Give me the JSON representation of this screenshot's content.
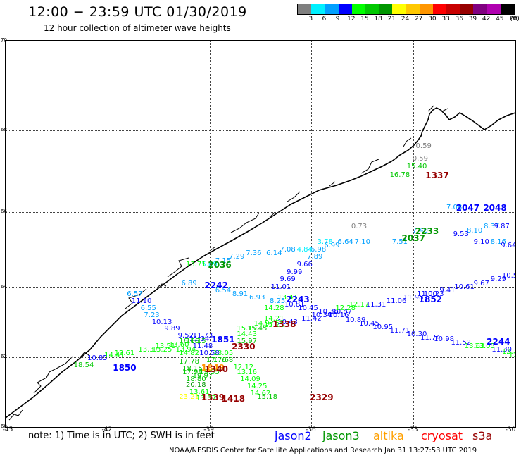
{
  "header": {
    "title": "12:00 − 23:59 UTC 01/30/2019",
    "subtitle": "12 hour collection of altimeter wave heights"
  },
  "colorbar": {
    "unit_label": "(ft)",
    "levels": [
      "3",
      "6",
      "9",
      "12",
      "15",
      "18",
      "21",
      "24",
      "27",
      "30",
      "33",
      "36",
      "39",
      "42",
      "45",
      "70"
    ],
    "colors": [
      "#7f7f7f",
      "#00f0ff",
      "#00a0ff",
      "#0000ff",
      "#00ff00",
      "#00c800",
      "#009600",
      "#ffff00",
      "#ffc800",
      "#ff9600",
      "#ff0000",
      "#c80000",
      "#960000",
      "#800080",
      "#b000b0",
      "#000000"
    ]
  },
  "map": {
    "lat_labels": [
      "70",
      "68",
      "66",
      "64",
      "62",
      "60"
    ],
    "lon_labels": [
      "-45",
      "-42",
      "-39",
      "-36",
      "-33",
      "-30"
    ],
    "observations": [
      {
        "t": "0.59",
        "c": "#808080",
        "lon": -32.7,
        "lat": 67.6
      },
      {
        "t": "0.59",
        "c": "#808080",
        "lon": -32.8,
        "lat": 67.3
      },
      {
        "t": "15.40",
        "c": "#00c800",
        "lon": -32.9,
        "lat": 67.1
      },
      {
        "t": "16.78",
        "c": "#00c800",
        "lon": -33.4,
        "lat": 66.9
      },
      {
        "t": "0.73",
        "c": "#808080",
        "lon": -34.6,
        "lat": 65.6
      },
      {
        "t": "7.08",
        "c": "#00a0ff",
        "lon": -31.8,
        "lat": 66.1
      },
      {
        "t": "7.40",
        "c": "#00a0ff",
        "lon": -32.8,
        "lat": 65.5
      },
      {
        "t": "8.10",
        "c": "#00a0ff",
        "lon": -31.2,
        "lat": 65.5
      },
      {
        "t": "8.37",
        "c": "#00a0ff",
        "lon": -30.7,
        "lat": 65.6
      },
      {
        "t": "9.87",
        "c": "#0000ff",
        "lon": -30.4,
        "lat": 65.6
      },
      {
        "t": "9.53",
        "c": "#0000ff",
        "lon": -31.6,
        "lat": 65.4
      },
      {
        "t": "9.10",
        "c": "#0000ff",
        "lon": -31.0,
        "lat": 65.2
      },
      {
        "t": "8.16",
        "c": "#00a0ff",
        "lon": -30.5,
        "lat": 65.2
      },
      {
        "t": "9.64",
        "c": "#0000ff",
        "lon": -30.2,
        "lat": 65.1
      },
      {
        "t": "7.51",
        "c": "#00a0ff",
        "lon": -33.4,
        "lat": 65.2
      },
      {
        "t": "7.10",
        "c": "#00a0ff",
        "lon": -34.5,
        "lat": 65.2
      },
      {
        "t": "6.64",
        "c": "#00a0ff",
        "lon": -35.0,
        "lat": 65.2
      },
      {
        "t": "3.78",
        "c": "#00f0ff",
        "lon": -35.6,
        "lat": 65.2
      },
      {
        "t": "6.99",
        "c": "#00a0ff",
        "lon": -35.4,
        "lat": 65.1
      },
      {
        "t": "6.98",
        "c": "#00a0ff",
        "lon": -35.8,
        "lat": 65.0
      },
      {
        "t": "4.84",
        "c": "#00f0ff",
        "lon": -36.2,
        "lat": 65.0
      },
      {
        "t": "7.08",
        "c": "#00a0ff",
        "lon": -36.7,
        "lat": 65.0
      },
      {
        "t": "7.89",
        "c": "#00a0ff",
        "lon": -35.9,
        "lat": 64.8
      },
      {
        "t": "6.14",
        "c": "#00a0ff",
        "lon": -37.1,
        "lat": 64.9
      },
      {
        "t": "7.36",
        "c": "#00a0ff",
        "lon": -37.7,
        "lat": 64.9
      },
      {
        "t": "7.29",
        "c": "#00a0ff",
        "lon": -38.2,
        "lat": 64.8
      },
      {
        "t": "7.15",
        "c": "#00a0ff",
        "lon": -38.6,
        "lat": 64.7
      },
      {
        "t": "5.89",
        "c": "#00f0ff",
        "lon": -39.0,
        "lat": 64.6
      },
      {
        "t": "13.71",
        "c": "#00ff00",
        "lon": -39.4,
        "lat": 64.6
      },
      {
        "t": "9.66",
        "c": "#0000ff",
        "lon": -36.2,
        "lat": 64.6
      },
      {
        "t": "9.99",
        "c": "#0000ff",
        "lon": -36.5,
        "lat": 64.4
      },
      {
        "t": "9.69",
        "c": "#0000ff",
        "lon": -36.7,
        "lat": 64.2
      },
      {
        "t": "11.01",
        "c": "#0000ff",
        "lon": -36.9,
        "lat": 64.0
      },
      {
        "t": "6.89",
        "c": "#00a0ff",
        "lon": -39.6,
        "lat": 64.1
      },
      {
        "t": "6.54",
        "c": "#00a0ff",
        "lon": -38.6,
        "lat": 63.9
      },
      {
        "t": "8.91",
        "c": "#00a0ff",
        "lon": -38.1,
        "lat": 63.8
      },
      {
        "t": "6.93",
        "c": "#00a0ff",
        "lon": -37.6,
        "lat": 63.7
      },
      {
        "t": "8.25",
        "c": "#00a0ff",
        "lon": -37.0,
        "lat": 63.6
      },
      {
        "t": "13.41",
        "c": "#00ff00",
        "lon": -36.7,
        "lat": 63.7
      },
      {
        "t": "10.81",
        "c": "#0000ff",
        "lon": -36.5,
        "lat": 63.5
      },
      {
        "t": "6.57",
        "c": "#00a0ff",
        "lon": -41.2,
        "lat": 63.8
      },
      {
        "t": "11.10",
        "c": "#0000ff",
        "lon": -41.0,
        "lat": 63.6
      },
      {
        "t": "6.55",
        "c": "#00a0ff",
        "lon": -40.8,
        "lat": 63.4
      },
      {
        "t": "7.23",
        "c": "#00a0ff",
        "lon": -40.7,
        "lat": 63.2
      },
      {
        "t": "10.13",
        "c": "#0000ff",
        "lon": -40.4,
        "lat": 63.0
      },
      {
        "t": "9.89",
        "c": "#0000ff",
        "lon": -40.1,
        "lat": 62.8
      },
      {
        "t": "9.52",
        "c": "#0000ff",
        "lon": -39.7,
        "lat": 62.6
      },
      {
        "t": "11.73",
        "c": "#0000ff",
        "lon": -39.2,
        "lat": 62.6
      },
      {
        "t": "11.34",
        "c": "#0000ff",
        "lon": -39.3,
        "lat": 62.5
      },
      {
        "t": "11.48",
        "c": "#0000ff",
        "lon": -39.2,
        "lat": 62.3
      },
      {
        "t": "10.58",
        "c": "#0000ff",
        "lon": -39.0,
        "lat": 62.1
      },
      {
        "t": "14.28",
        "c": "#00ff00",
        "lon": -37.1,
        "lat": 63.4
      },
      {
        "t": "14.21",
        "c": "#00ff00",
        "lon": -37.1,
        "lat": 63.1
      },
      {
        "t": "14.97",
        "c": "#00ff00",
        "lon": -37.4,
        "lat": 62.95
      },
      {
        "t": "15.21",
        "c": "#00ff00",
        "lon": -37.1,
        "lat": 62.9
      },
      {
        "t": "15.45",
        "c": "#00c800",
        "lon": -37.6,
        "lat": 62.8
      },
      {
        "t": "15.19",
        "c": "#00ff00",
        "lon": -37.9,
        "lat": 62.8
      },
      {
        "t": "14.43",
        "c": "#00ff00",
        "lon": -37.9,
        "lat": 62.65
      },
      {
        "t": "15.97",
        "c": "#00c800",
        "lon": -37.9,
        "lat": 62.45
      },
      {
        "t": "10.45",
        "c": "#0000ff",
        "lon": -36.1,
        "lat": 63.4
      },
      {
        "t": "10.38",
        "c": "#0000ff",
        "lon": -35.5,
        "lat": 63.3
      },
      {
        "t": "10.87",
        "c": "#0000ff",
        "lon": -35.1,
        "lat": 63.3
      },
      {
        "t": "10.34",
        "c": "#0000ff",
        "lon": -35.7,
        "lat": 63.2
      },
      {
        "t": "10.16",
        "c": "#0000ff",
        "lon": -35.2,
        "lat": 63.2
      },
      {
        "t": "11.42",
        "c": "#0000ff",
        "lon": -36.0,
        "lat": 63.1
      },
      {
        "t": "10.43",
        "c": "#0000ff",
        "lon": -36.7,
        "lat": 63.0
      },
      {
        "t": "12.28",
        "c": "#00ff00",
        "lon": -35.0,
        "lat": 63.4
      },
      {
        "t": "12.17",
        "c": "#00ff00",
        "lon": -34.6,
        "lat": 63.5
      },
      {
        "t": "11.31",
        "c": "#0000ff",
        "lon": -34.1,
        "lat": 63.5
      },
      {
        "t": "11.06",
        "c": "#0000ff",
        "lon": -33.5,
        "lat": 63.6
      },
      {
        "t": "11.98",
        "c": "#0000ff",
        "lon": -33.0,
        "lat": 63.7
      },
      {
        "t": "11.00",
        "c": "#0000ff",
        "lon": -32.6,
        "lat": 63.8
      },
      {
        "t": "10.23",
        "c": "#0000ff",
        "lon": -32.4,
        "lat": 63.8
      },
      {
        "t": "9.41",
        "c": "#0000ff",
        "lon": -32.0,
        "lat": 63.9
      },
      {
        "t": "10.61",
        "c": "#0000ff",
        "lon": -31.5,
        "lat": 64.0
      },
      {
        "t": "9.67",
        "c": "#0000ff",
        "lon": -31.0,
        "lat": 64.1
      },
      {
        "t": "9.29",
        "c": "#0000ff",
        "lon": -30.5,
        "lat": 64.2
      },
      {
        "t": "10.51",
        "c": "#0000ff",
        "lon": -30.1,
        "lat": 64.3
      },
      {
        "t": "10.89",
        "c": "#0000ff",
        "lon": -34.7,
        "lat": 63.05
      },
      {
        "t": "10.45",
        "c": "#0000ff",
        "lon": -34.3,
        "lat": 62.95
      },
      {
        "t": "10.95",
        "c": "#0000ff",
        "lon": -33.9,
        "lat": 62.85
      },
      {
        "t": "11.71",
        "c": "#0000ff",
        "lon": -33.4,
        "lat": 62.75
      },
      {
        "t": "10.30",
        "c": "#0000ff",
        "lon": -32.9,
        "lat": 62.65
      },
      {
        "t": "11.74",
        "c": "#0000ff",
        "lon": -32.5,
        "lat": 62.55
      },
      {
        "t": "10.98",
        "c": "#0000ff",
        "lon": -32.1,
        "lat": 62.5
      },
      {
        "t": "11.52",
        "c": "#0000ff",
        "lon": -31.6,
        "lat": 62.4
      },
      {
        "t": "13.63",
        "c": "#00ff00",
        "lon": -31.2,
        "lat": 62.3
      },
      {
        "t": "13.05",
        "c": "#00ff00",
        "lon": -30.9,
        "lat": 62.3
      },
      {
        "t": "11.30",
        "c": "#0000ff",
        "lon": -30.4,
        "lat": 62.2
      },
      {
        "t": "12.75",
        "c": "#00ff00",
        "lon": -30.1,
        "lat": 62.15
      },
      {
        "t": "12.29",
        "c": "#00ff00",
        "lon": -29.9,
        "lat": 62.05
      },
      {
        "t": "16.16",
        "c": "#00c800",
        "lon": -39.6,
        "lat": 62.45
      },
      {
        "t": "16.15",
        "c": "#00c800",
        "lon": -39.4,
        "lat": 62.45
      },
      {
        "t": "13.60",
        "c": "#00ff00",
        "lon": -39.9,
        "lat": 62.35
      },
      {
        "t": "13.51",
        "c": "#00ff00",
        "lon": -40.3,
        "lat": 62.3
      },
      {
        "t": "13.37",
        "c": "#00ff00",
        "lon": -40.8,
        "lat": 62.2
      },
      {
        "t": "13.25",
        "c": "#00ff00",
        "lon": -40.4,
        "lat": 62.2
      },
      {
        "t": "13.94",
        "c": "#00ff00",
        "lon": -39.7,
        "lat": 62.2
      },
      {
        "t": "12.61",
        "c": "#00ff00",
        "lon": -41.5,
        "lat": 62.1
      },
      {
        "t": "14.41",
        "c": "#00ff00",
        "lon": -41.8,
        "lat": 62.05
      },
      {
        "t": "10.85",
        "c": "#0000ff",
        "lon": -42.3,
        "lat": 61.95
      },
      {
        "t": "18.54",
        "c": "#00c800",
        "lon": -42.7,
        "lat": 61.75
      },
      {
        "t": "14.82",
        "c": "#00ff00",
        "lon": -39.6,
        "lat": 62.1
      },
      {
        "t": "17.78",
        "c": "#00c800",
        "lon": -39.6,
        "lat": 61.85
      },
      {
        "t": "18.15",
        "c": "#00c800",
        "lon": -39.5,
        "lat": 61.65
      },
      {
        "t": "17.99",
        "c": "#00c800",
        "lon": -39.5,
        "lat": 61.55
      },
      {
        "t": "18.80",
        "c": "#00c800",
        "lon": -39.4,
        "lat": 61.35
      },
      {
        "t": "20.18",
        "c": "#009600",
        "lon": -39.4,
        "lat": 61.2
      },
      {
        "t": "19.55",
        "c": "#00c800",
        "lon": -39.0,
        "lat": 61.55
      },
      {
        "t": "19.97",
        "c": "#00c800",
        "lon": -39.2,
        "lat": 61.45
      },
      {
        "t": "17.76",
        "c": "#00c800",
        "lon": -38.8,
        "lat": 61.9
      },
      {
        "t": "17.68",
        "c": "#00c800",
        "lon": -38.6,
        "lat": 61.9
      },
      {
        "t": "13.05",
        "c": "#00ff00",
        "lon": -38.6,
        "lat": 62.1
      },
      {
        "t": "12.12",
        "c": "#00ff00",
        "lon": -38.0,
        "lat": 61.7
      },
      {
        "t": "13.16",
        "c": "#00ff00",
        "lon": -37.9,
        "lat": 61.55
      },
      {
        "t": "14.09",
        "c": "#00ff00",
        "lon": -37.8,
        "lat": 61.35
      },
      {
        "t": "14.25",
        "c": "#00ff00",
        "lon": -37.6,
        "lat": 61.15
      },
      {
        "t": "14.62",
        "c": "#00ff00",
        "lon": -37.5,
        "lat": 60.95
      },
      {
        "t": "15.18",
        "c": "#00c800",
        "lon": -37.3,
        "lat": 60.85
      },
      {
        "t": "23.21",
        "c": "#ffff00",
        "lon": -39.6,
        "lat": 60.85
      },
      {
        "t": "13.61",
        "c": "#00ff00",
        "lon": -39.3,
        "lat": 61.0
      },
      {
        "t": "13.37",
        "c": "#00ff00",
        "lon": -39.1,
        "lat": 60.8
      }
    ],
    "pass_times": [
      {
        "t": "1337",
        "c": "#960000",
        "lon": -32.3,
        "lat": 66.9
      },
      {
        "t": "2047",
        "c": "#0000ff",
        "lon": -31.4,
        "lat": 66.1
      },
      {
        "t": "2048",
        "c": "#0000ff",
        "lon": -30.6,
        "lat": 66.1
      },
      {
        "t": "2233",
        "c": "#009600",
        "lon": -32.6,
        "lat": 65.5
      },
      {
        "t": "2037",
        "c": "#009600",
        "lon": -33.0,
        "lat": 65.3
      },
      {
        "t": "2036",
        "c": "#009600",
        "lon": -38.7,
        "lat": 64.6
      },
      {
        "t": "2242",
        "c": "#0000ff",
        "lon": -38.8,
        "lat": 64.05
      },
      {
        "t": "2243",
        "c": "#0000ff",
        "lon": -36.4,
        "lat": 63.65
      },
      {
        "t": "1852",
        "c": "#0000ff",
        "lon": -32.5,
        "lat": 63.65
      },
      {
        "t": "1338",
        "c": "#960000",
        "lon": -36.8,
        "lat": 62.95
      },
      {
        "t": "1851",
        "c": "#0000ff",
        "lon": -38.6,
        "lat": 62.5
      },
      {
        "t": "2330",
        "c": "#960000",
        "lon": -38.0,
        "lat": 62.3
      },
      {
        "t": "2244",
        "c": "#0000ff",
        "lon": -30.5,
        "lat": 62.45
      },
      {
        "t": "1850",
        "c": "#0000ff",
        "lon": -41.5,
        "lat": 61.7
      },
      {
        "t": "1849",
        "c": "#ff9600",
        "lon": -38.9,
        "lat": 61.7
      },
      {
        "t": "1340",
        "c": "#960000",
        "lon": -38.8,
        "lat": 61.65
      },
      {
        "t": "1339",
        "c": "#960000",
        "lon": -38.9,
        "lat": 60.85
      },
      {
        "t": "1418",
        "c": "#960000",
        "lon": -38.3,
        "lat": 60.8
      },
      {
        "t": "2329",
        "c": "#960000",
        "lon": -35.7,
        "lat": 60.85
      }
    ]
  },
  "footer": {
    "note": "note: 1) Time is in UTC; 2) SWH is in feet",
    "satellites": [
      {
        "label": "jason2",
        "color": "#0000ff"
      },
      {
        "label": "jason3",
        "color": "#009600"
      },
      {
        "label": "altika",
        "color": "#ffa000"
      },
      {
        "label": "cryosat",
        "color": "#ff0000"
      },
      {
        "label": "s3a",
        "color": "#960000"
      }
    ],
    "credit": "NOAA/NESDIS Center for Satellite Applications and Research    Jan 31 13:27:53 UTC 2019"
  }
}
